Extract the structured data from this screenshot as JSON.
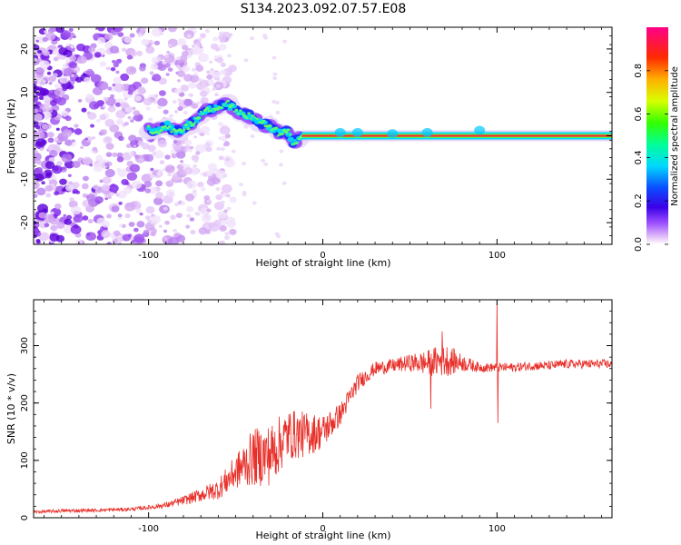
{
  "title": "S134.2023.092.07.57.E08",
  "chart_data": [
    {
      "type": "heatmap",
      "xlabel": "Height of straight line (km)",
      "ylabel": "Frequency (Hz)",
      "xlim": [
        -166,
        166
      ],
      "ylim": [
        -25,
        25
      ],
      "xticks": [
        -100,
        0,
        100
      ],
      "xtick_labels": [
        "-100",
        "0",
        "100"
      ],
      "yticks": [
        -20,
        -10,
        0,
        10,
        20
      ],
      "ytick_labels": [
        "-20",
        "-10",
        "0",
        "10",
        "20"
      ],
      "colorbar": {
        "label": "Normalized spectral amplitude",
        "range": [
          0,
          1
        ],
        "ticks": [
          0.0,
          0.2,
          0.4,
          0.6,
          0.8
        ],
        "tick_labels": [
          "0.0",
          "0.2",
          "0.4",
          "0.6",
          "0.8"
        ]
      },
      "ridge": {
        "x": [
          -100,
          -95,
          -90,
          -85,
          -80,
          -75,
          -70,
          -65,
          -60,
          -55,
          -50,
          -45,
          -40,
          -35,
          -30,
          -25,
          -20,
          -17,
          -15,
          -10,
          -5,
          0,
          10,
          20,
          30,
          40,
          50,
          60,
          70,
          80,
          90,
          100,
          110,
          166
        ],
        "freq": [
          1.5,
          1.0,
          2.5,
          1.0,
          1.5,
          3.0,
          5.0,
          6.0,
          6.5,
          7.5,
          6.0,
          5.0,
          4.0,
          3.0,
          2.0,
          0.5,
          1.0,
          -1.5,
          -1.0,
          0.0,
          0.0,
          0.0,
          0.0,
          0.5,
          0.0,
          0.0,
          0.0,
          0.0,
          0.0,
          0.0,
          0.0,
          0.0,
          0.0,
          0.0
        ]
      }
    },
    {
      "type": "line",
      "xlabel": "Height of straight line (km)",
      "ylabel": "SNR (10 * v/v)",
      "xlim": [
        -166,
        166
      ],
      "ylim": [
        0,
        380
      ],
      "xticks": [
        -100,
        0,
        100
      ],
      "xtick_labels": [
        "-100",
        "0",
        "100"
      ],
      "yticks": [
        0,
        100,
        200,
        300
      ],
      "ytick_labels": [
        "0",
        "100",
        "200",
        "300"
      ],
      "series": [
        {
          "color": "#e8302a",
          "x": [
            -166,
            -150,
            -130,
            -110,
            -100,
            -90,
            -80,
            -70,
            -60,
            -50,
            -40,
            -30,
            -20,
            -10,
            0,
            10,
            20,
            30,
            40,
            50,
            60,
            70,
            80,
            90,
            100,
            110,
            120,
            130,
            140,
            150,
            166
          ],
          "y": [
            10,
            12,
            13,
            15,
            18,
            22,
            30,
            40,
            50,
            80,
            105,
            110,
            145,
            145,
            150,
            180,
            235,
            260,
            265,
            270,
            270,
            275,
            270,
            262,
            262,
            262,
            265,
            265,
            268,
            268,
            268
          ],
          "noise": [
            3,
            3,
            3,
            3,
            4,
            5,
            8,
            12,
            18,
            30,
            50,
            55,
            45,
            40,
            30,
            20,
            15,
            12,
            12,
            15,
            22,
            30,
            15,
            8,
            8,
            8,
            8,
            8,
            8,
            8,
            8
          ]
        }
      ],
      "spikes": [
        {
          "x": 100.0,
          "y": 380
        },
        {
          "x": 100.4,
          "y": 165
        },
        {
          "x": 68.5,
          "y": 325
        },
        {
          "x": 62.0,
          "y": 190
        }
      ]
    }
  ]
}
